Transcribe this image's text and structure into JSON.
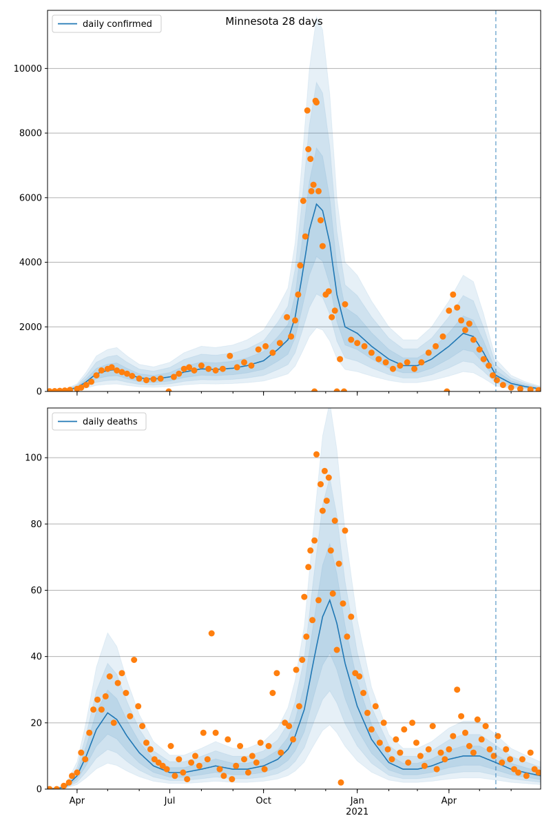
{
  "figure": {
    "title": "Minnesota 28 days"
  },
  "colors": {
    "model": "#1f77b4",
    "observed": "#ff7f0e",
    "band": "#1f77b4",
    "grid": "#b0b0b0"
  },
  "x_axis": {
    "ticks": [
      {
        "date": "2020-04-01",
        "label": "Apr"
      },
      {
        "date": "2020-07-01",
        "label": "Jul"
      },
      {
        "date": "2020-10-01",
        "label": "Oct"
      },
      {
        "date": "2021-01-01",
        "label": "Jan"
      },
      {
        "date": "2021-04-01",
        "label": "Apr"
      }
    ],
    "year_label": "2021",
    "range": [
      "2020-03-03",
      "2021-06-30"
    ],
    "forecast_start": "2021-05-17"
  },
  "chart_data": [
    {
      "type": "line",
      "legend": "daily confirmed",
      "legend_position": "top-left",
      "ylim": [
        0,
        11800
      ],
      "yticks": [
        0,
        2000,
        4000,
        6000,
        8000,
        10000
      ],
      "grid": "y",
      "model_curve": [
        [
          "2020-03-03",
          10
        ],
        [
          "2020-03-20",
          30
        ],
        [
          "2020-04-01",
          120
        ],
        [
          "2020-04-10",
          300
        ],
        [
          "2020-04-20",
          550
        ],
        [
          "2020-05-01",
          650
        ],
        [
          "2020-05-10",
          680
        ],
        [
          "2020-05-20",
          550
        ],
        [
          "2020-06-01",
          420
        ],
        [
          "2020-06-15",
          380
        ],
        [
          "2020-07-01",
          450
        ],
        [
          "2020-07-15",
          600
        ],
        [
          "2020-08-01",
          700
        ],
        [
          "2020-08-15",
          680
        ],
        [
          "2020-09-01",
          720
        ],
        [
          "2020-09-15",
          800
        ],
        [
          "2020-10-01",
          950
        ],
        [
          "2020-10-15",
          1300
        ],
        [
          "2020-10-25",
          1600
        ],
        [
          "2020-11-01",
          2300
        ],
        [
          "2020-11-08",
          3600
        ],
        [
          "2020-11-15",
          5000
        ],
        [
          "2020-11-22",
          5800
        ],
        [
          "2020-11-28",
          5600
        ],
        [
          "2020-12-05",
          4600
        ],
        [
          "2020-12-12",
          3000
        ],
        [
          "2020-12-20",
          2000
        ],
        [
          "2021-01-01",
          1800
        ],
        [
          "2021-01-15",
          1400
        ],
        [
          "2021-02-01",
          1000
        ],
        [
          "2021-02-15",
          800
        ],
        [
          "2021-03-01",
          800
        ],
        [
          "2021-03-15",
          1000
        ],
        [
          "2021-04-01",
          1400
        ],
        [
          "2021-04-15",
          1800
        ],
        [
          "2021-04-25",
          1700
        ],
        [
          "2021-05-05",
          1200
        ],
        [
          "2021-05-17",
          500
        ],
        [
          "2021-06-01",
          250
        ],
        [
          "2021-06-15",
          150
        ],
        [
          "2021-06-30",
          80
        ]
      ],
      "bands": [
        {
          "low": 0.72,
          "high": 1.3
        },
        {
          "low": 0.52,
          "high": 1.65
        },
        {
          "low": 0.34,
          "high": 2.0
        }
      ],
      "observed": [
        [
          "2020-03-05",
          5
        ],
        [
          "2020-03-10",
          10
        ],
        [
          "2020-03-15",
          20
        ],
        [
          "2020-03-20",
          30
        ],
        [
          "2020-03-25",
          50
        ],
        [
          "2020-04-01",
          80
        ],
        [
          "2020-04-05",
          120
        ],
        [
          "2020-04-10",
          200
        ],
        [
          "2020-04-15",
          300
        ],
        [
          "2020-04-20",
          500
        ],
        [
          "2020-04-25",
          650
        ],
        [
          "2020-05-01",
          700
        ],
        [
          "2020-05-05",
          750
        ],
        [
          "2020-05-10",
          650
        ],
        [
          "2020-05-15",
          600
        ],
        [
          "2020-05-20",
          550
        ],
        [
          "2020-05-25",
          480
        ],
        [
          "2020-06-01",
          400
        ],
        [
          "2020-06-08",
          350
        ],
        [
          "2020-06-15",
          380
        ],
        [
          "2020-06-22",
          400
        ],
        [
          "2020-06-30",
          0
        ],
        [
          "2020-07-05",
          450
        ],
        [
          "2020-07-10",
          550
        ],
        [
          "2020-07-15",
          700
        ],
        [
          "2020-07-20",
          750
        ],
        [
          "2020-07-25",
          650
        ],
        [
          "2020-08-01",
          800
        ],
        [
          "2020-08-08",
          700
        ],
        [
          "2020-08-15",
          650
        ],
        [
          "2020-08-22",
          700
        ],
        [
          "2020-08-29",
          1100
        ],
        [
          "2020-09-05",
          750
        ],
        [
          "2020-09-12",
          900
        ],
        [
          "2020-09-19",
          800
        ],
        [
          "2020-09-26",
          1300
        ],
        [
          "2020-10-03",
          1400
        ],
        [
          "2020-10-10",
          1200
        ],
        [
          "2020-10-17",
          1500
        ],
        [
          "2020-10-24",
          2300
        ],
        [
          "2020-10-28",
          1700
        ],
        [
          "2020-11-01",
          2200
        ],
        [
          "2020-11-04",
          3000
        ],
        [
          "2020-11-06",
          3900
        ],
        [
          "2020-11-09",
          5900
        ],
        [
          "2020-11-11",
          4800
        ],
        [
          "2020-11-13",
          8700
        ],
        [
          "2020-11-14",
          7500
        ],
        [
          "2020-11-16",
          7200
        ],
        [
          "2020-11-17",
          6200
        ],
        [
          "2020-11-19",
          6400
        ],
        [
          "2020-11-20",
          0
        ],
        [
          "2020-11-21",
          9000
        ],
        [
          "2020-11-22",
          8950
        ],
        [
          "2020-11-24",
          6200
        ],
        [
          "2020-11-26",
          5300
        ],
        [
          "2020-11-28",
          4500
        ],
        [
          "2020-12-01",
          3000
        ],
        [
          "2020-12-04",
          3100
        ],
        [
          "2020-12-07",
          2300
        ],
        [
          "2020-12-10",
          2500
        ],
        [
          "2020-12-12",
          0
        ],
        [
          "2020-12-15",
          1000
        ],
        [
          "2020-12-19",
          0
        ],
        [
          "2020-12-20",
          2700
        ],
        [
          "2020-12-26",
          1600
        ],
        [
          "2021-01-01",
          1500
        ],
        [
          "2021-01-08",
          1400
        ],
        [
          "2021-01-15",
          1200
        ],
        [
          "2021-01-22",
          1000
        ],
        [
          "2021-01-29",
          900
        ],
        [
          "2021-02-05",
          700
        ],
        [
          "2021-02-12",
          800
        ],
        [
          "2021-02-19",
          900
        ],
        [
          "2021-02-26",
          700
        ],
        [
          "2021-03-05",
          900
        ],
        [
          "2021-03-12",
          1200
        ],
        [
          "2021-03-19",
          1400
        ],
        [
          "2021-03-26",
          1700
        ],
        [
          "2021-03-30",
          0
        ],
        [
          "2021-04-01",
          2500
        ],
        [
          "2021-04-05",
          3000
        ],
        [
          "2021-04-09",
          2600
        ],
        [
          "2021-04-13",
          2200
        ],
        [
          "2021-04-17",
          1900
        ],
        [
          "2021-04-21",
          2100
        ],
        [
          "2021-04-25",
          1600
        ],
        [
          "2021-05-01",
          1300
        ],
        [
          "2021-05-05",
          1000
        ],
        [
          "2021-05-10",
          800
        ],
        [
          "2021-05-14",
          500
        ],
        [
          "2021-05-18",
          350
        ],
        [
          "2021-05-24",
          200
        ],
        [
          "2021-06-01",
          120
        ],
        [
          "2021-06-10",
          80
        ],
        [
          "2021-06-20",
          60
        ],
        [
          "2021-06-28",
          40
        ]
      ]
    },
    {
      "type": "line",
      "legend": "daily deaths",
      "legend_position": "top-left",
      "ylim": [
        0,
        115
      ],
      "yticks": [
        0,
        20,
        40,
        60,
        80,
        100
      ],
      "grid": "y",
      "model_curve": [
        [
          "2020-03-03",
          0
        ],
        [
          "2020-03-20",
          0.5
        ],
        [
          "2020-04-01",
          4
        ],
        [
          "2020-04-10",
          10
        ],
        [
          "2020-04-20",
          18
        ],
        [
          "2020-05-01",
          23
        ],
        [
          "2020-05-10",
          21
        ],
        [
          "2020-05-20",
          16
        ],
        [
          "2020-06-01",
          11
        ],
        [
          "2020-06-15",
          7
        ],
        [
          "2020-07-01",
          5
        ],
        [
          "2020-07-15",
          5
        ],
        [
          "2020-08-01",
          6
        ],
        [
          "2020-08-15",
          7
        ],
        [
          "2020-09-01",
          6
        ],
        [
          "2020-09-15",
          6
        ],
        [
          "2020-10-01",
          7
        ],
        [
          "2020-10-15",
          9
        ],
        [
          "2020-10-25",
          12
        ],
        [
          "2020-11-01",
          16
        ],
        [
          "2020-11-10",
          24
        ],
        [
          "2020-11-20",
          40
        ],
        [
          "2020-11-28",
          52
        ],
        [
          "2020-12-05",
          57
        ],
        [
          "2020-12-12",
          50
        ],
        [
          "2020-12-20",
          38
        ],
        [
          "2021-01-01",
          25
        ],
        [
          "2021-01-15",
          15
        ],
        [
          "2021-02-01",
          8
        ],
        [
          "2021-02-15",
          6
        ],
        [
          "2021-03-01",
          6
        ],
        [
          "2021-03-15",
          7
        ],
        [
          "2021-04-01",
          9
        ],
        [
          "2021-04-15",
          10
        ],
        [
          "2021-05-01",
          10
        ],
        [
          "2021-05-17",
          8
        ],
        [
          "2021-06-01",
          6
        ],
        [
          "2021-06-15",
          5
        ],
        [
          "2021-06-30",
          4
        ]
      ],
      "bands": [
        {
          "low": 0.72,
          "high": 1.3
        },
        {
          "low": 0.52,
          "high": 1.65
        },
        {
          "low": 0.34,
          "high": 2.05
        }
      ],
      "observed": [
        [
          "2020-03-05",
          0
        ],
        [
          "2020-03-12",
          0
        ],
        [
          "2020-03-19",
          1
        ],
        [
          "2020-03-24",
          2
        ],
        [
          "2020-03-27",
          4
        ],
        [
          "2020-04-01",
          5
        ],
        [
          "2020-04-05",
          11
        ],
        [
          "2020-04-09",
          9
        ],
        [
          "2020-04-13",
          17
        ],
        [
          "2020-04-17",
          24
        ],
        [
          "2020-04-21",
          27
        ],
        [
          "2020-04-25",
          24
        ],
        [
          "2020-04-29",
          28
        ],
        [
          "2020-05-03",
          34
        ],
        [
          "2020-05-07",
          20
        ],
        [
          "2020-05-11",
          32
        ],
        [
          "2020-05-15",
          35
        ],
        [
          "2020-05-19",
          29
        ],
        [
          "2020-05-23",
          22
        ],
        [
          "2020-05-27",
          39
        ],
        [
          "2020-05-31",
          25
        ],
        [
          "2020-06-04",
          19
        ],
        [
          "2020-06-08",
          14
        ],
        [
          "2020-06-12",
          12
        ],
        [
          "2020-06-16",
          9
        ],
        [
          "2020-06-20",
          8
        ],
        [
          "2020-06-24",
          7
        ],
        [
          "2020-06-28",
          6
        ],
        [
          "2020-07-02",
          13
        ],
        [
          "2020-07-06",
          4
        ],
        [
          "2020-07-10",
          9
        ],
        [
          "2020-07-14",
          5
        ],
        [
          "2020-07-18",
          3
        ],
        [
          "2020-07-22",
          8
        ],
        [
          "2020-07-26",
          10
        ],
        [
          "2020-07-30",
          7
        ],
        [
          "2020-08-03",
          17
        ],
        [
          "2020-08-07",
          9
        ],
        [
          "2020-08-11",
          47
        ],
        [
          "2020-08-15",
          17
        ],
        [
          "2020-08-19",
          6
        ],
        [
          "2020-08-23",
          4
        ],
        [
          "2020-08-27",
          15
        ],
        [
          "2020-08-31",
          3
        ],
        [
          "2020-09-04",
          7
        ],
        [
          "2020-09-08",
          13
        ],
        [
          "2020-09-12",
          9
        ],
        [
          "2020-09-16",
          5
        ],
        [
          "2020-09-20",
          10
        ],
        [
          "2020-09-24",
          8
        ],
        [
          "2020-09-28",
          14
        ],
        [
          "2020-10-02",
          6
        ],
        [
          "2020-10-06",
          13
        ],
        [
          "2020-10-10",
          29
        ],
        [
          "2020-10-14",
          35
        ],
        [
          "2020-10-18",
          11
        ],
        [
          "2020-10-22",
          20
        ],
        [
          "2020-10-26",
          19
        ],
        [
          "2020-10-30",
          15
        ],
        [
          "2020-11-02",
          36
        ],
        [
          "2020-11-05",
          25
        ],
        [
          "2020-11-08",
          39
        ],
        [
          "2020-11-10",
          58
        ],
        [
          "2020-11-12",
          46
        ],
        [
          "2020-11-14",
          67
        ],
        [
          "2020-11-16",
          72
        ],
        [
          "2020-11-18",
          51
        ],
        [
          "2020-11-20",
          75
        ],
        [
          "2020-11-22",
          101
        ],
        [
          "2020-11-24",
          57
        ],
        [
          "2020-11-26",
          92
        ],
        [
          "2020-11-28",
          84
        ],
        [
          "2020-11-30",
          96
        ],
        [
          "2020-12-02",
          87
        ],
        [
          "2020-12-04",
          94
        ],
        [
          "2020-12-06",
          72
        ],
        [
          "2020-12-08",
          59
        ],
        [
          "2020-12-10",
          81
        ],
        [
          "2020-12-12",
          42
        ],
        [
          "2020-12-14",
          68
        ],
        [
          "2020-12-16",
          2
        ],
        [
          "2020-12-18",
          56
        ],
        [
          "2020-12-20",
          78
        ],
        [
          "2020-12-22",
          46
        ],
        [
          "2020-12-26",
          52
        ],
        [
          "2020-12-30",
          35
        ],
        [
          "2021-01-03",
          34
        ],
        [
          "2021-01-07",
          29
        ],
        [
          "2021-01-11",
          23
        ],
        [
          "2021-01-15",
          18
        ],
        [
          "2021-01-19",
          25
        ],
        [
          "2021-01-23",
          14
        ],
        [
          "2021-01-27",
          20
        ],
        [
          "2021-01-31",
          12
        ],
        [
          "2021-02-04",
          9
        ],
        [
          "2021-02-08",
          15
        ],
        [
          "2021-02-12",
          11
        ],
        [
          "2021-02-16",
          18
        ],
        [
          "2021-02-20",
          8
        ],
        [
          "2021-02-24",
          20
        ],
        [
          "2021-02-28",
          14
        ],
        [
          "2021-03-04",
          10
        ],
        [
          "2021-03-08",
          7
        ],
        [
          "2021-03-12",
          12
        ],
        [
          "2021-03-16",
          19
        ],
        [
          "2021-03-20",
          6
        ],
        [
          "2021-03-24",
          11
        ],
        [
          "2021-03-28",
          9
        ],
        [
          "2021-04-01",
          12
        ],
        [
          "2021-04-05",
          16
        ],
        [
          "2021-04-09",
          30
        ],
        [
          "2021-04-13",
          22
        ],
        [
          "2021-04-17",
          17
        ],
        [
          "2021-04-21",
          13
        ],
        [
          "2021-04-25",
          11
        ],
        [
          "2021-04-29",
          21
        ],
        [
          "2021-05-03",
          15
        ],
        [
          "2021-05-07",
          19
        ],
        [
          "2021-05-11",
          12
        ],
        [
          "2021-05-15",
          10
        ],
        [
          "2021-05-19",
          16
        ],
        [
          "2021-05-23",
          8
        ],
        [
          "2021-05-27",
          12
        ],
        [
          "2021-05-31",
          9
        ],
        [
          "2021-06-04",
          6
        ],
        [
          "2021-06-08",
          5
        ],
        [
          "2021-06-12",
          9
        ],
        [
          "2021-06-16",
          4
        ],
        [
          "2021-06-20",
          11
        ],
        [
          "2021-06-24",
          6
        ],
        [
          "2021-06-28",
          5
        ]
      ]
    }
  ]
}
